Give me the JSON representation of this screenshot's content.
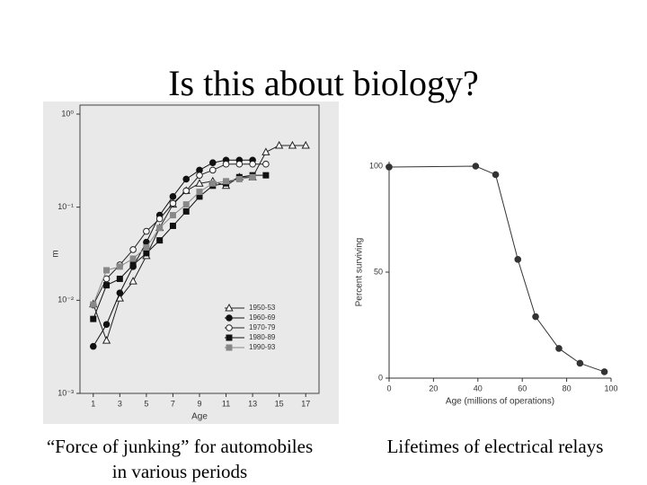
{
  "title": "Is this about biology?",
  "captions": [
    [
      "“Force of junking” for automobiles",
      "in various periods"
    ],
    [
      "Lifetimes of electrical relays"
    ]
  ],
  "chart_data": [
    {
      "type": "line",
      "xlabel": "Age",
      "ylabel": "m",
      "yscale": "log",
      "legend": "lower right",
      "x": [
        1,
        2,
        3,
        4,
        5,
        6,
        7,
        8,
        9,
        10,
        11,
        12,
        13,
        14,
        15,
        16,
        17
      ],
      "xlim": [
        0,
        18
      ],
      "xticks": [
        1,
        3,
        5,
        7,
        9,
        11,
        13,
        15,
        17
      ],
      "ylim": [
        0.001,
        1
      ],
      "yticks": [
        {
          "value": 0.001,
          "label": "10⁻³"
        },
        {
          "value": 0.01,
          "label": "10⁻²"
        },
        {
          "value": 0.1,
          "label": "10⁻¹"
        },
        {
          "value": 1,
          "label": "10⁰"
        }
      ],
      "series": [
        {
          "name": "1950-53",
          "color": "#222222",
          "marker": "triangle-open",
          "values": [
            0.0091,
            0.0037,
            0.0105,
            0.016,
            0.03,
            0.06,
            0.107,
            0.15,
            0.18,
            0.19,
            0.17,
            0.21,
            0.21,
            0.39,
            0.46,
            0.46,
            0.46
          ]
        },
        {
          "name": "1960-69",
          "color": "#111111",
          "marker": "circle",
          "values": [
            0.0032,
            0.0055,
            0.012,
            0.023,
            0.042,
            0.082,
            0.13,
            0.2,
            0.25,
            0.3,
            0.32,
            0.32,
            0.32,
            null,
            null,
            null,
            null
          ]
        },
        {
          "name": "1970-79",
          "color": "#222222",
          "marker": "circle-open",
          "values": [
            0.0089,
            0.017,
            0.024,
            0.035,
            0.055,
            0.075,
            0.11,
            0.15,
            0.22,
            0.25,
            0.29,
            0.29,
            0.29,
            0.29,
            null,
            null,
            null
          ]
        },
        {
          "name": "1980-89",
          "color": "#111111",
          "marker": "square",
          "values": [
            0.0063,
            0.0145,
            0.017,
            0.024,
            0.032,
            0.044,
            0.063,
            0.09,
            0.13,
            0.17,
            0.18,
            0.21,
            0.22,
            0.22,
            null,
            null,
            null
          ]
        },
        {
          "name": "1990-93",
          "color": "#888888",
          "marker": "square",
          "values": [
            0.009,
            0.021,
            0.023,
            0.028,
            0.037,
            0.06,
            0.082,
            0.107,
            0.146,
            0.18,
            0.19,
            0.2,
            0.21,
            null,
            null,
            null,
            null
          ]
        }
      ]
    },
    {
      "type": "line",
      "xlabel": "Age (millions of operations)",
      "ylabel": "Percent surviving",
      "x": [
        0,
        39,
        48,
        58,
        66,
        76.5,
        86,
        97
      ],
      "xlim": [
        0,
        100
      ],
      "xticks": [
        0,
        20,
        40,
        60,
        80,
        100
      ],
      "ylim": [
        0,
        100
      ],
      "yticks": [
        0,
        50,
        100
      ],
      "series": [
        {
          "color": "#333333",
          "marker": "circle",
          "values": [
            99.6,
            100,
            96,
            56,
            29,
            14,
            7,
            3
          ]
        }
      ]
    }
  ]
}
